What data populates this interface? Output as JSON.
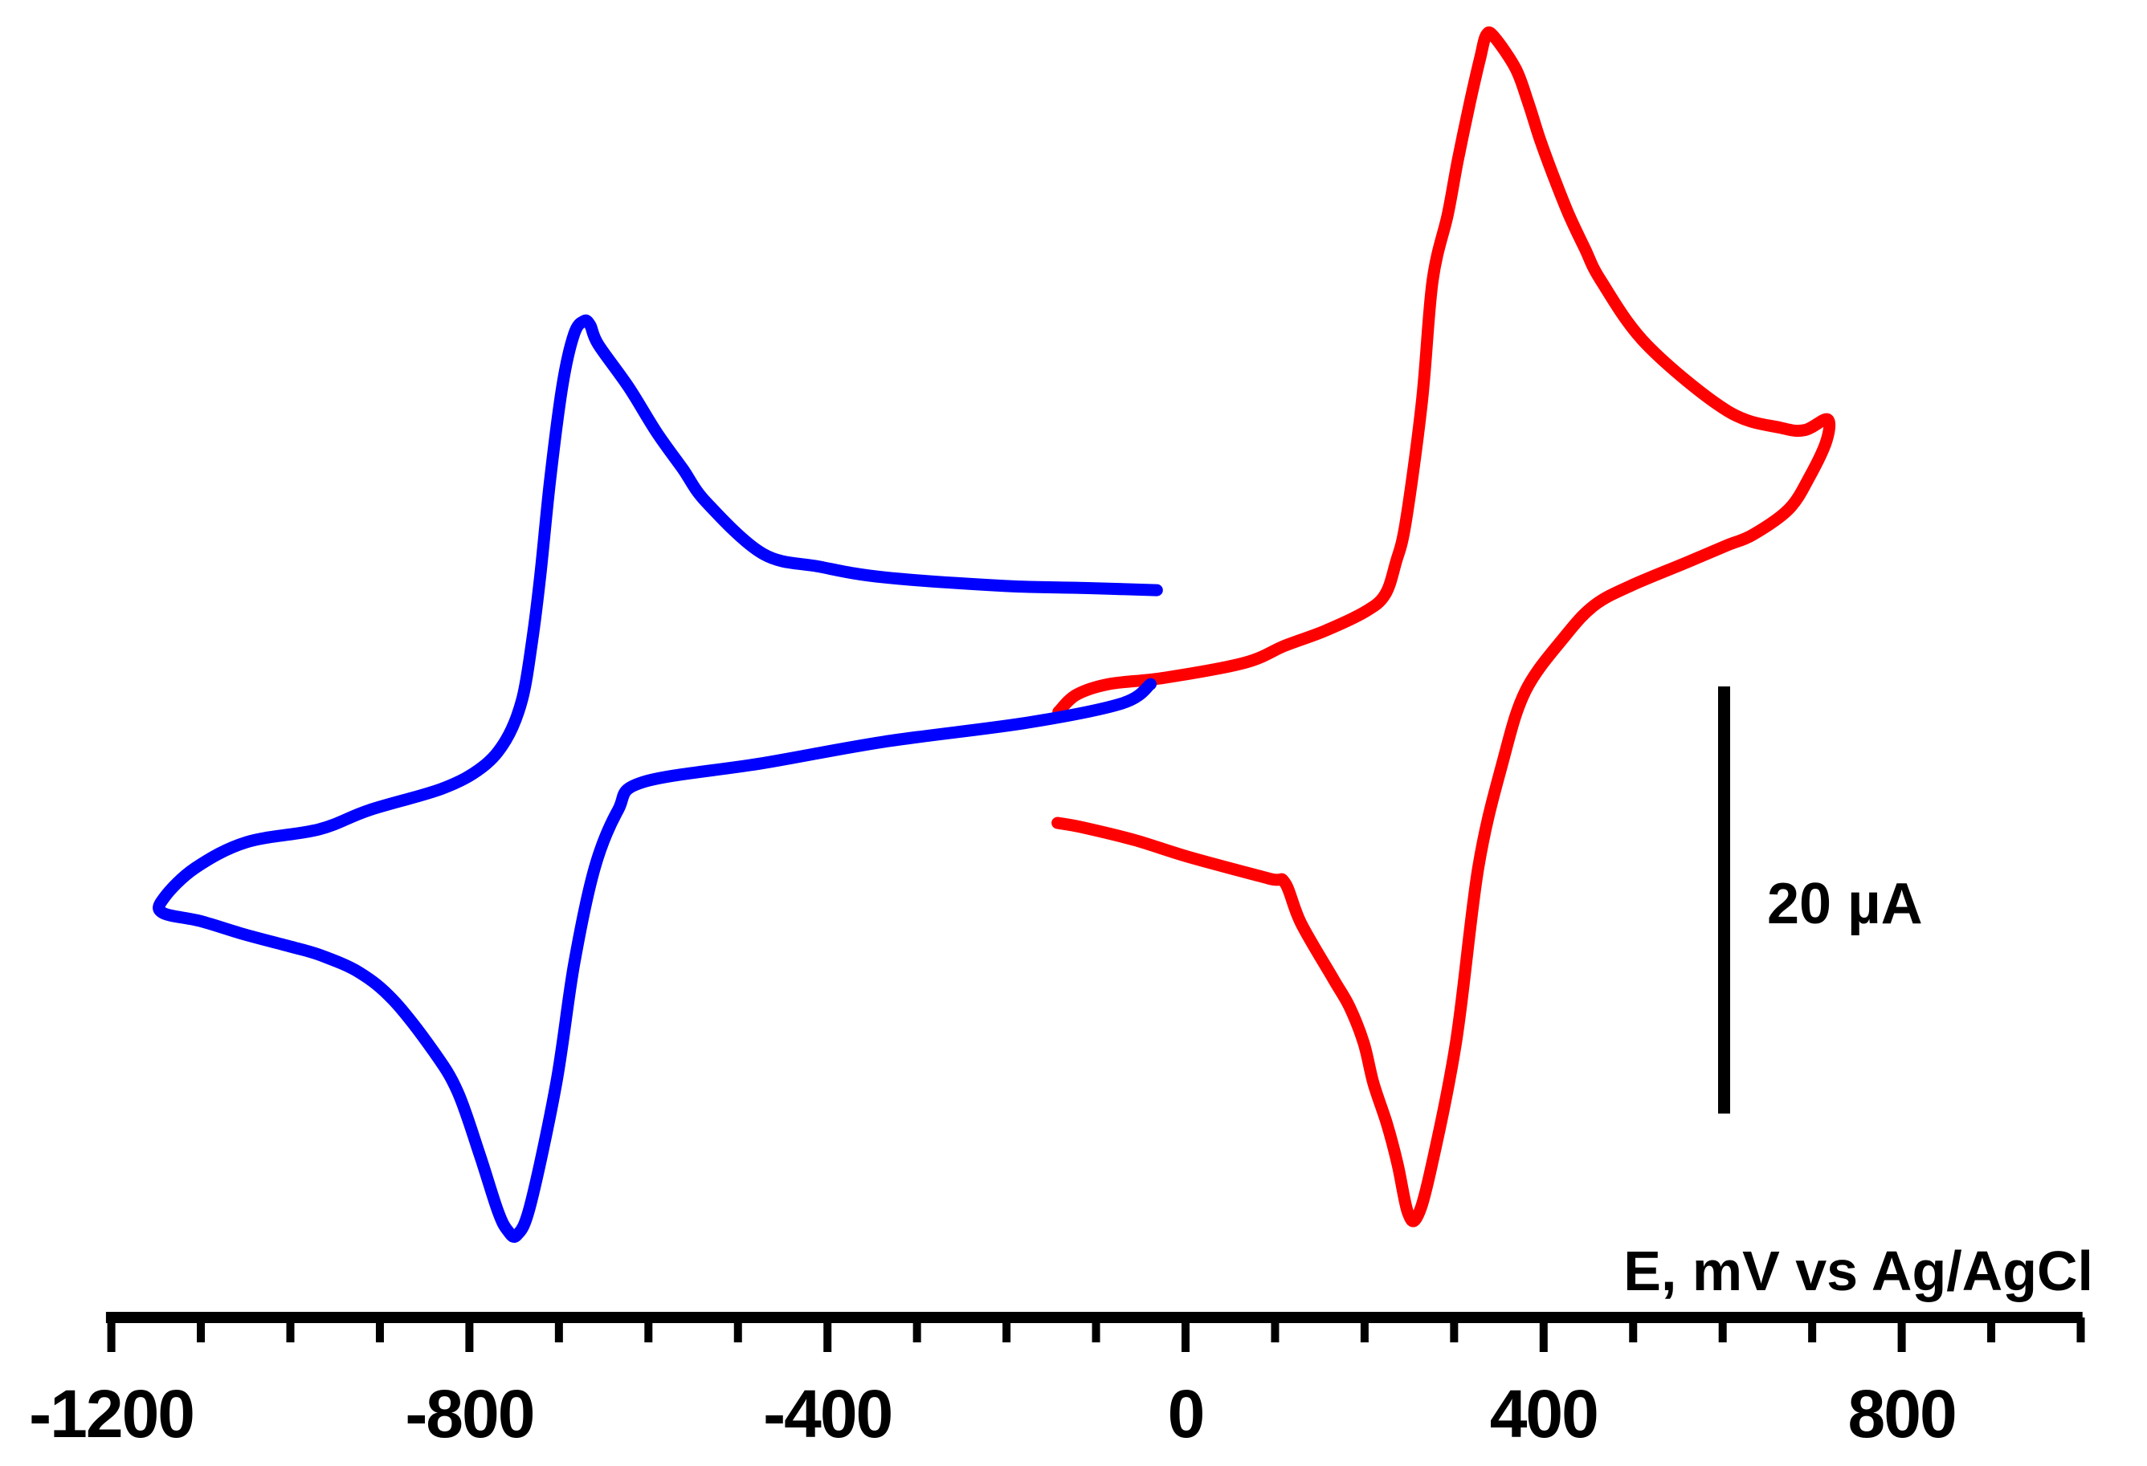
{
  "figure": {
    "background": "#FFFFFF",
    "description": "Cyclic voltammograms of two reversible redox couples"
  },
  "chart_data": {
    "type": "line",
    "kind": "cyclic-voltammogram",
    "title": "",
    "xlabel": "E, mV vs Ag/AgCl",
    "ylabel": "",
    "grid": false,
    "legend": "none",
    "x_axis": {
      "unit": "mV",
      "axis_line_range": [
        -1206,
        1002
      ],
      "minor_tick_step": 100,
      "minor_tick_range": [
        -1200,
        1000
      ],
      "labeled_ticks": [
        {
          "value": -1200,
          "label": "-1200"
        },
        {
          "value": -800,
          "label": "-800"
        },
        {
          "value": -400,
          "label": "-400"
        },
        {
          "value": 0,
          "label": "0"
        },
        {
          "value": 400,
          "label": "400"
        },
        {
          "value": 800,
          "label": "800"
        }
      ]
    },
    "y_axis": {
      "unit": "uA",
      "axis_shown": false,
      "scale_bar": {
        "label": "20 µA",
        "value_uA": 20
      }
    },
    "series": [
      {
        "name": "red voltammogram",
        "color": "#FF0000",
        "anodic_peak_mV": 336,
        "anodic_peak_uA": 32.2,
        "cathodic_peak_mV": 258,
        "cathodic_peak_uA": -23.2,
        "start_potential_mV": -142,
        "switching_potential_mV": 717,
        "points_E_mV_I_uA": [
          [
            -142,
            0.5
          ],
          [
            -122,
            1.3
          ],
          [
            -86,
            1.8
          ],
          [
            -23,
            2.1
          ],
          [
            66,
            2.8
          ],
          [
            111,
            3.6
          ],
          [
            156,
            4.3
          ],
          [
            201,
            5.2
          ],
          [
            223,
            6.0
          ],
          [
            235,
            7.5
          ],
          [
            246,
            9.4
          ],
          [
            264,
            15.0
          ],
          [
            276,
            20.7
          ],
          [
            293,
            23.8
          ],
          [
            304,
            26.3
          ],
          [
            318,
            29.1
          ],
          [
            329,
            31.1
          ],
          [
            336,
            32.2
          ],
          [
            345,
            32.1
          ],
          [
            369,
            30.6
          ],
          [
            383,
            29.0
          ],
          [
            396,
            27.3
          ],
          [
            410,
            25.7
          ],
          [
            428,
            23.8
          ],
          [
            446,
            22.2
          ],
          [
            464,
            20.7
          ],
          [
            515,
            17.7
          ],
          [
            605,
            14.6
          ],
          [
            665,
            13.8
          ],
          [
            692,
            13.7
          ],
          [
            717,
            14.2
          ],
          [
            716,
            13.2
          ],
          [
            697,
            11.5
          ],
          [
            674,
            10.0
          ],
          [
            634,
            8.8
          ],
          [
            605,
            8.3
          ],
          [
            560,
            7.5
          ],
          [
            497,
            6.4
          ],
          [
            457,
            5.5
          ],
          [
            425,
            4.1
          ],
          [
            380,
            1.5
          ],
          [
            354,
            -1.9
          ],
          [
            327,
            -6.8
          ],
          [
            302,
            -15.0
          ],
          [
            273,
            -21.1
          ],
          [
            258,
            -23.2
          ],
          [
            248,
            -22.9
          ],
          [
            237,
            -20.7
          ],
          [
            225,
            -18.8
          ],
          [
            210,
            -16.9
          ],
          [
            199,
            -15.0
          ],
          [
            183,
            -13.3
          ],
          [
            165,
            -12.0
          ],
          [
            129,
            -9.4
          ],
          [
            111,
            -7.5
          ],
          [
            93,
            -7.3
          ],
          [
            4,
            -6.3
          ],
          [
            -57,
            -5.5
          ],
          [
            -116,
            -4.9
          ],
          [
            -143,
            -4.7
          ]
        ]
      },
      {
        "name": "blue voltammogram",
        "color": "#0000FF",
        "anodic_peak_mV": -672,
        "anodic_peak_uA": 18.8,
        "cathodic_peak_mV": -747,
        "cathodic_peak_uA": -24.0,
        "start_potential_mV": -39,
        "switching_potential_mV": -1143,
        "points_E_mV_I_uA": [
          [
            -39,
            1.8
          ],
          [
            -71,
            0.9
          ],
          [
            -176,
            0.0
          ],
          [
            -337,
            -0.9
          ],
          [
            -472,
            -1.9
          ],
          [
            -607,
            -2.8
          ],
          [
            -634,
            -4.1
          ],
          [
            -660,
            -6.8
          ],
          [
            -683,
            -11.3
          ],
          [
            -703,
            -16.9
          ],
          [
            -732,
            -22.6
          ],
          [
            -747,
            -24.0
          ],
          [
            -757,
            -23.8
          ],
          [
            -768,
            -22.9
          ],
          [
            -788,
            -20.3
          ],
          [
            -813,
            -17.3
          ],
          [
            -840,
            -15.4
          ],
          [
            -885,
            -13.0
          ],
          [
            -923,
            -11.7
          ],
          [
            -966,
            -10.9
          ],
          [
            -999,
            -10.5
          ],
          [
            -1053,
            -9.9
          ],
          [
            -1100,
            -9.3
          ],
          [
            -1143,
            -8.9
          ],
          [
            -1141,
            -8.2
          ],
          [
            -1106,
            -6.8
          ],
          [
            -1049,
            -5.6
          ],
          [
            -968,
            -5.0
          ],
          [
            -912,
            -4.1
          ],
          [
            -831,
            -3.1
          ],
          [
            -786,
            -2.1
          ],
          [
            -759,
            -0.8
          ],
          [
            -741,
            1.1
          ],
          [
            -730,
            3.8
          ],
          [
            -721,
            6.8
          ],
          [
            -710,
            11.3
          ],
          [
            -696,
            15.8
          ],
          [
            -683,
            18.2
          ],
          [
            -672,
            18.8
          ],
          [
            -665,
            18.6
          ],
          [
            -656,
            17.7
          ],
          [
            -622,
            15.7
          ],
          [
            -591,
            13.6
          ],
          [
            -562,
            11.9
          ],
          [
            -535,
            10.3
          ],
          [
            -472,
            7.9
          ],
          [
            -409,
            7.3
          ],
          [
            -337,
            6.8
          ],
          [
            -203,
            6.4
          ],
          [
            -113,
            6.3
          ],
          [
            -32,
            6.2
          ]
        ]
      }
    ]
  }
}
